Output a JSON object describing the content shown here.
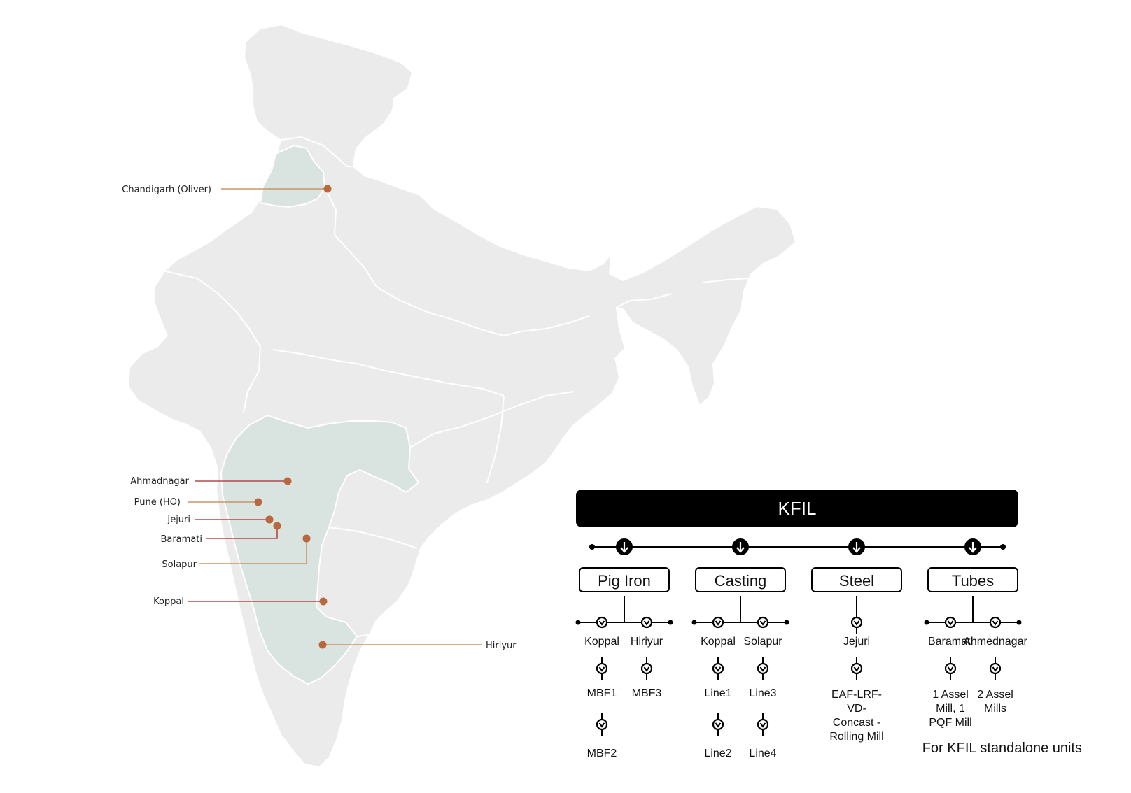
{
  "colors": {
    "land": "#ebebeb",
    "highlight": "#d9e3df",
    "border": "#ffffff",
    "marker": "#b8683c",
    "leader_orange": "#c8956a",
    "leader_red": "#b54848",
    "tree_header": "#000000"
  },
  "map": {
    "locations": [
      {
        "id": "chandigarh",
        "label": "Chandigarh (Oliver)"
      },
      {
        "id": "ahmadnagar",
        "label": "Ahmadnagar"
      },
      {
        "id": "pune",
        "label": "Pune (HO)"
      },
      {
        "id": "jejuri",
        "label": "Jejuri"
      },
      {
        "id": "baramati",
        "label": "Baramati"
      },
      {
        "id": "solapur",
        "label": "Solapur"
      },
      {
        "id": "koppal",
        "label": "Koppal"
      },
      {
        "id": "hiriyur",
        "label": "Hiriyur"
      }
    ]
  },
  "tree": {
    "root": "KFIL",
    "segments": [
      {
        "name": "Pig Iron",
        "plants": [
          {
            "location": "Koppal",
            "units": [
              "MBF1",
              "MBF2"
            ]
          },
          {
            "location": "Hiriyur",
            "units": [
              "MBF3"
            ]
          }
        ]
      },
      {
        "name": "Casting",
        "plants": [
          {
            "location": "Koppal",
            "units": [
              "Line1",
              "Line2"
            ]
          },
          {
            "location": "Solapur",
            "units": [
              "Line3",
              "Line4"
            ]
          }
        ]
      },
      {
        "name": "Steel",
        "plants": [
          {
            "location": "Jejuri",
            "units": [
              "EAF-LRF-VD-Concast - Rolling Mill"
            ],
            "unit_lines": [
              [
                "EAF-LRF-",
                "VD-",
                "Concast -",
                "Rolling Mill"
              ]
            ]
          }
        ]
      },
      {
        "name": "Tubes",
        "plants": [
          {
            "location": "Baramati",
            "units": [
              "1 Assel Mill, 1 PQF Mill"
            ],
            "unit_lines": [
              [
                "1 Assel",
                "Mill, 1",
                "PQF Mill"
              ]
            ]
          },
          {
            "location": "Ahmednagar",
            "units": [
              "2 Assel Mills"
            ],
            "unit_lines": [
              [
                "2 Assel",
                "Mills"
              ]
            ]
          }
        ]
      }
    ]
  },
  "footnote": "For KFIL standalone units"
}
